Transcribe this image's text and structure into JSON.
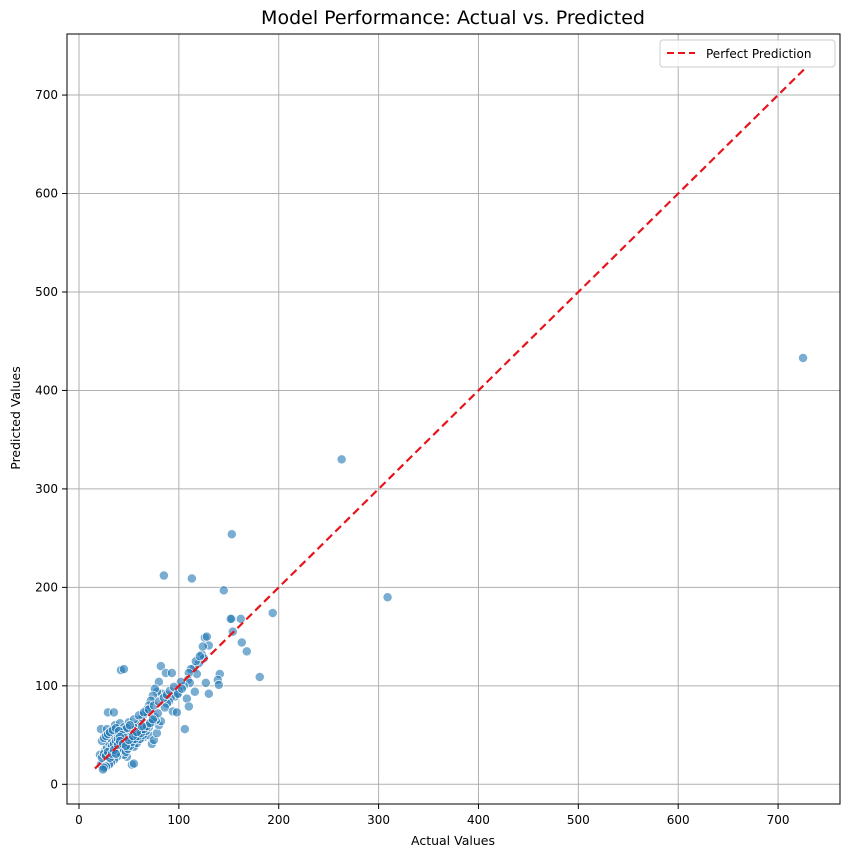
{
  "chart_data": {
    "type": "scatter",
    "title": "Model Performance: Actual vs. Predicted",
    "xlabel": "Actual Values",
    "ylabel": "Predicted Values",
    "xlim": [
      -12,
      762
    ],
    "ylim": [
      -20,
      762
    ],
    "xticks": [
      0,
      100,
      200,
      300,
      400,
      500,
      600,
      700
    ],
    "yticks": [
      0,
      100,
      200,
      300,
      400,
      500,
      600,
      700
    ],
    "grid": true,
    "legend_position": "top-right",
    "colors": {
      "points": "#1f77b4",
      "line": "#e8141b",
      "grid": "#b0b0b0"
    },
    "series": [
      {
        "kind": "scatter",
        "points": [
          [
            725,
            433
          ],
          [
            263,
            330
          ],
          [
            309,
            190
          ],
          [
            153,
            254
          ],
          [
            85,
            212
          ],
          [
            113,
            209
          ],
          [
            145,
            197
          ],
          [
            194,
            174
          ],
          [
            153,
            168
          ],
          [
            162,
            168
          ],
          [
            154,
            155
          ],
          [
            163,
            144
          ],
          [
            168,
            135
          ],
          [
            181,
            109
          ],
          [
            126,
            149
          ],
          [
            128,
            150
          ],
          [
            130,
            141
          ],
          [
            123,
            132
          ],
          [
            125,
            128
          ],
          [
            120,
            123
          ],
          [
            115,
            118
          ],
          [
            112,
            117
          ],
          [
            118,
            112
          ],
          [
            110,
            113
          ],
          [
            109,
            106
          ],
          [
            111,
            103
          ],
          [
            105,
            100
          ],
          [
            102,
            104
          ],
          [
            100,
            95
          ],
          [
            98,
            91
          ],
          [
            96,
            89
          ],
          [
            108,
            87
          ],
          [
            106,
            56
          ],
          [
            110,
            79
          ],
          [
            116,
            94
          ],
          [
            127,
            103
          ],
          [
            130,
            92
          ],
          [
            141,
            112
          ],
          [
            139,
            106
          ],
          [
            140,
            101
          ],
          [
            152,
            168
          ],
          [
            82,
            120
          ],
          [
            87,
            113
          ],
          [
            93,
            113
          ],
          [
            92,
            88
          ],
          [
            90,
            84
          ],
          [
            88,
            82
          ],
          [
            86,
            78
          ],
          [
            94,
            74
          ],
          [
            98,
            73
          ],
          [
            83,
            92
          ],
          [
            80,
            104
          ],
          [
            78,
            94
          ],
          [
            76,
            97
          ],
          [
            74,
            90
          ],
          [
            72,
            85
          ],
          [
            70,
            80
          ],
          [
            68,
            76
          ],
          [
            66,
            72
          ],
          [
            64,
            70
          ],
          [
            62,
            66
          ],
          [
            60,
            62
          ],
          [
            58,
            60
          ],
          [
            56,
            57
          ],
          [
            54,
            55
          ],
          [
            52,
            52
          ],
          [
            50,
            50
          ],
          [
            48,
            48
          ],
          [
            46,
            45
          ],
          [
            44,
            43
          ],
          [
            42,
            40
          ],
          [
            40,
            38
          ],
          [
            38,
            36
          ],
          [
            36,
            34
          ],
          [
            34,
            32
          ],
          [
            32,
            30
          ],
          [
            30,
            28
          ],
          [
            28,
            26
          ],
          [
            26,
            24
          ],
          [
            24,
            22
          ],
          [
            22,
            20
          ],
          [
            42,
            116
          ],
          [
            45,
            117
          ],
          [
            29,
            73
          ],
          [
            35,
            73
          ],
          [
            22,
            56
          ],
          [
            28,
            56
          ],
          [
            36,
            60
          ],
          [
            41,
            62
          ],
          [
            45,
            58
          ],
          [
            50,
            63
          ],
          [
            55,
            66
          ],
          [
            60,
            70
          ],
          [
            65,
            73
          ],
          [
            70,
            76
          ],
          [
            75,
            80
          ],
          [
            80,
            84
          ],
          [
            85,
            88
          ],
          [
            55,
            40
          ],
          [
            60,
            45
          ],
          [
            65,
            48
          ],
          [
            70,
            50
          ],
          [
            73,
            41
          ],
          [
            75,
            45
          ],
          [
            78,
            52
          ],
          [
            80,
            60
          ],
          [
            82,
            64
          ],
          [
            57,
            50
          ],
          [
            62,
            55
          ],
          [
            67,
            58
          ],
          [
            72,
            62
          ],
          [
            77,
            65
          ],
          [
            53,
            20
          ],
          [
            55,
            21
          ],
          [
            48,
            28
          ],
          [
            45,
            30
          ],
          [
            40,
            32
          ],
          [
            38,
            28
          ],
          [
            35,
            25
          ],
          [
            32,
            22
          ],
          [
            30,
            20
          ],
          [
            27,
            18
          ],
          [
            25,
            17
          ],
          [
            24,
            15
          ],
          [
            26,
            34
          ],
          [
            28,
            38
          ],
          [
            30,
            42
          ],
          [
            33,
            45
          ],
          [
            36,
            48
          ],
          [
            39,
            50
          ],
          [
            42,
            52
          ],
          [
            45,
            55
          ],
          [
            48,
            57
          ],
          [
            51,
            60
          ],
          [
            23,
            44
          ],
          [
            25,
            47
          ],
          [
            27,
            49
          ],
          [
            29,
            51
          ],
          [
            31,
            53
          ],
          [
            34,
            55
          ],
          [
            37,
            57
          ],
          [
            40,
            54
          ],
          [
            43,
            50
          ],
          [
            46,
            47
          ],
          [
            49,
            44
          ],
          [
            52,
            41
          ],
          [
            55,
            38
          ],
          [
            58,
            42
          ],
          [
            61,
            46
          ],
          [
            64,
            50
          ],
          [
            67,
            54
          ],
          [
            70,
            58
          ],
          [
            73,
            63
          ],
          [
            76,
            68
          ],
          [
            79,
            72
          ],
          [
            31,
            36
          ],
          [
            33,
            39
          ],
          [
            35,
            41
          ],
          [
            37,
            44
          ],
          [
            39,
            46
          ],
          [
            41,
            48
          ],
          [
            43,
            37
          ],
          [
            45,
            35
          ],
          [
            47,
            33
          ],
          [
            49,
            36
          ],
          [
            51,
            39
          ],
          [
            53,
            43
          ],
          [
            56,
            46
          ],
          [
            59,
            49
          ],
          [
            62,
            52
          ],
          [
            65,
            56
          ],
          [
            68,
            59
          ],
          [
            71,
            62
          ],
          [
            74,
            66
          ],
          [
            21,
            30
          ],
          [
            23,
            27
          ],
          [
            25,
            31
          ],
          [
            27,
            29
          ],
          [
            29,
            33
          ],
          [
            31,
            27
          ],
          [
            33,
            31
          ],
          [
            35,
            35
          ],
          [
            37,
            31
          ],
          [
            39,
            40
          ],
          [
            41,
            44
          ],
          [
            44,
            41
          ],
          [
            47,
            39
          ],
          [
            50,
            45
          ],
          [
            54,
            49
          ],
          [
            58,
            53
          ],
          [
            63,
            59
          ],
          [
            88,
            91
          ],
          [
            91,
            95
          ],
          [
            95,
            99
          ],
          [
            99,
            92
          ],
          [
            103,
            97
          ],
          [
            117,
            125
          ],
          [
            121,
            130
          ],
          [
            124,
            140
          ]
        ]
      },
      {
        "kind": "line",
        "name": "Perfect Prediction",
        "x": [
          16,
          726
        ],
        "y": [
          16,
          726
        ]
      }
    ]
  }
}
